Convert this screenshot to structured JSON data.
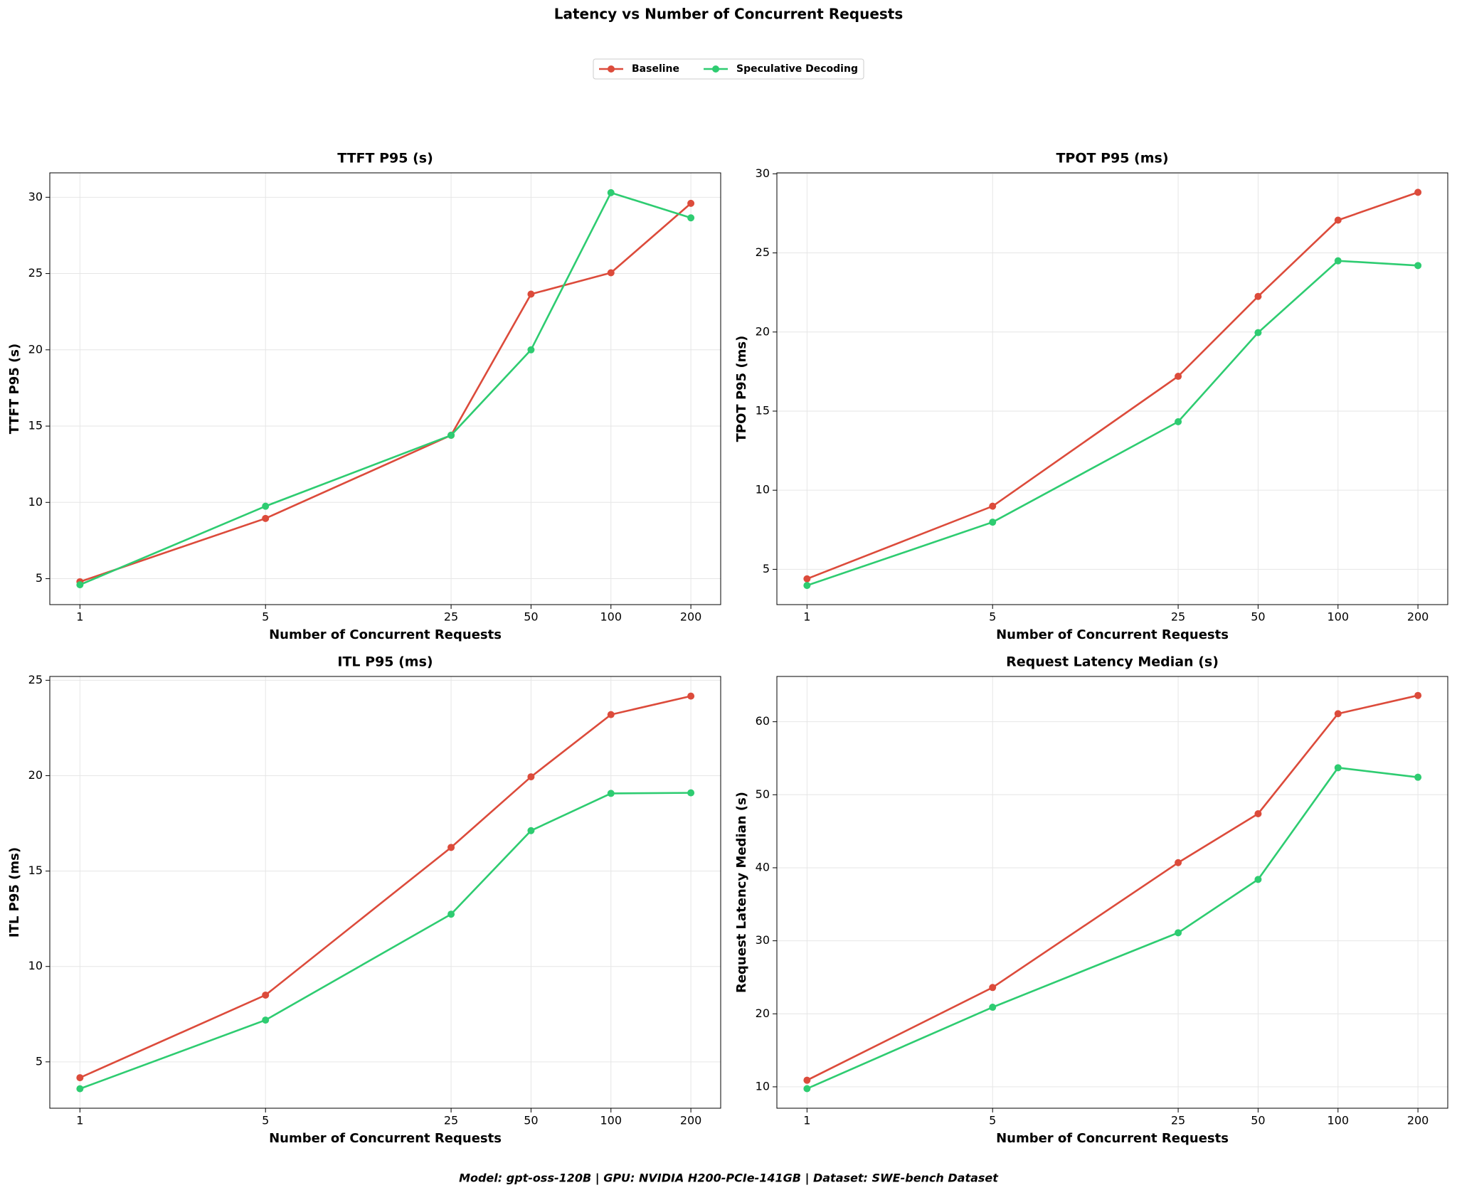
{
  "title": "Latency vs Number of Concurrent Requests",
  "footer": "Model: gpt-oss-120B | GPU: NVIDIA H200-PCIe-141GB | Dataset: SWE-bench Dataset",
  "legend_position": "upper center",
  "chart_data": [
    {
      "type": "line",
      "title": "TTFT P95 (s)",
      "x_label": "Number of Concurrent Requests",
      "y_label": "TTFT P95 (s)",
      "x_scale": "log",
      "x": [
        1,
        5,
        25,
        50,
        100,
        200
      ],
      "xticks": [
        1,
        5,
        25,
        50,
        100,
        200
      ],
      "xlim": [
        0.77,
        259
      ],
      "ylim": [
        3.3,
        31.6
      ],
      "yticks": [
        5,
        10,
        15,
        20,
        25,
        30
      ],
      "grid": true,
      "series": [
        {
          "name": "Baseline",
          "color": "#dc4b3b",
          "values": [
            4.8,
            8.95,
            14.4,
            23.65,
            25.05,
            29.6
          ]
        },
        {
          "name": "Speculative Decoding",
          "color": "#2ecc71",
          "values": [
            4.6,
            9.75,
            14.4,
            20.0,
            30.3,
            28.65
          ]
        }
      ]
    },
    {
      "type": "line",
      "title": "TPOT P95 (ms)",
      "x_label": "Number of Concurrent Requests",
      "y_label": "TPOT P95 (ms)",
      "x_scale": "log",
      "x": [
        1,
        5,
        25,
        50,
        100,
        200
      ],
      "xticks": [
        1,
        5,
        25,
        50,
        100,
        200
      ],
      "xlim": [
        0.77,
        259
      ],
      "ylim": [
        2.77,
        30.06
      ],
      "yticks": [
        5,
        10,
        15,
        20,
        25,
        30
      ],
      "grid": true,
      "series": [
        {
          "name": "Baseline",
          "color": "#dc4b3b",
          "values": [
            4.4,
            8.99,
            17.2,
            22.25,
            27.07,
            28.83
          ]
        },
        {
          "name": "Speculative Decoding",
          "color": "#2ecc71",
          "values": [
            3.98,
            7.98,
            14.33,
            19.96,
            24.5,
            24.2
          ]
        }
      ]
    },
    {
      "type": "line",
      "title": "ITL P95 (ms)",
      "x_label": "Number of Concurrent Requests",
      "y_label": "ITL P95 (ms)",
      "x_scale": "log",
      "x": [
        1,
        5,
        25,
        50,
        100,
        200
      ],
      "xticks": [
        1,
        5,
        25,
        50,
        100,
        200
      ],
      "xlim": [
        0.77,
        259
      ],
      "ylim": [
        2.57,
        25.2
      ],
      "yticks": [
        5,
        10,
        15,
        20,
        25
      ],
      "grid": true,
      "series": [
        {
          "name": "Baseline",
          "color": "#dc4b3b",
          "values": [
            4.17,
            8.5,
            16.24,
            19.94,
            23.2,
            24.17
          ]
        },
        {
          "name": "Speculative Decoding",
          "color": "#2ecc71",
          "values": [
            3.59,
            7.19,
            12.74,
            17.12,
            19.07,
            19.1
          ]
        }
      ]
    },
    {
      "type": "line",
      "title": "Request Latency Median (s)",
      "x_label": "Number of Concurrent Requests",
      "y_label": "Request Latency Median (s)",
      "x_scale": "log",
      "x": [
        1,
        5,
        25,
        50,
        100,
        200
      ],
      "xticks": [
        1,
        5,
        25,
        50,
        100,
        200
      ],
      "xlim": [
        0.77,
        259
      ],
      "ylim": [
        7.07,
        66.2
      ],
      "yticks": [
        10,
        20,
        30,
        40,
        50,
        60
      ],
      "grid": true,
      "series": [
        {
          "name": "Baseline",
          "color": "#dc4b3b",
          "values": [
            10.9,
            23.6,
            40.7,
            47.4,
            61.1,
            63.6
          ]
        },
        {
          "name": "Speculative Decoding",
          "color": "#2ecc71",
          "values": [
            9.75,
            20.9,
            31.1,
            38.4,
            53.7,
            52.4
          ]
        }
      ]
    }
  ]
}
